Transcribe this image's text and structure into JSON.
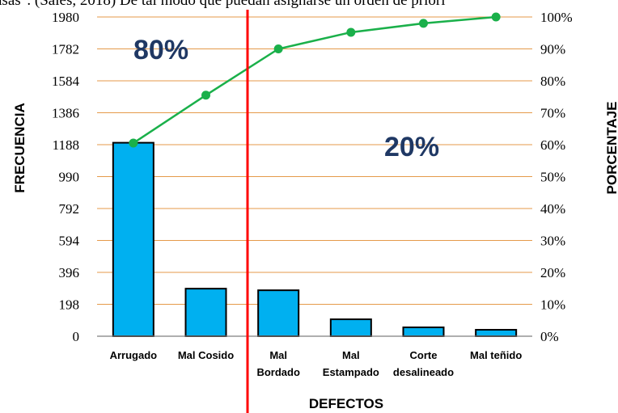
{
  "caption": "asas\". (Sales, 2018) De tal modo que puedan asignarse un orden de priori",
  "chart_data": {
    "type": "bar",
    "categories": [
      [
        "Arrugado"
      ],
      [
        "Mal Cosido"
      ],
      [
        "Mal",
        "Bordado"
      ],
      [
        "Mal",
        "Estampado"
      ],
      [
        "Corte",
        "desalineado"
      ],
      [
        "Mal teñido"
      ]
    ],
    "values": [
      1200,
      295,
      285,
      105,
      55,
      40
    ],
    "cumulative_percent": [
      60.5,
      75.5,
      90,
      95.2,
      98,
      100
    ],
    "y_left_ticks": [
      "0",
      "198",
      "396",
      "594",
      "792",
      "990",
      "1188",
      "1386",
      "1584",
      "1782",
      "1980"
    ],
    "y_right_ticks": [
      "0%",
      "10%",
      "20%",
      "30%",
      "40%",
      "50%",
      "60%",
      "70%",
      "80%",
      "90%",
      "100%"
    ],
    "ylim": [
      0,
      1980
    ],
    "y2lim": [
      0,
      100
    ],
    "xlabel": "DEFECTOS",
    "ylabel": "FRECUENCIA",
    "y2label": "PORCENTAJE",
    "annotations": {
      "left": "80%",
      "right": "20%"
    },
    "grid": true,
    "colors": {
      "bar": "#00b0f0",
      "line": "#1ab04a",
      "divider": "#ff0000",
      "grid": "#e59a4a",
      "annotation": "#1f3864"
    }
  }
}
